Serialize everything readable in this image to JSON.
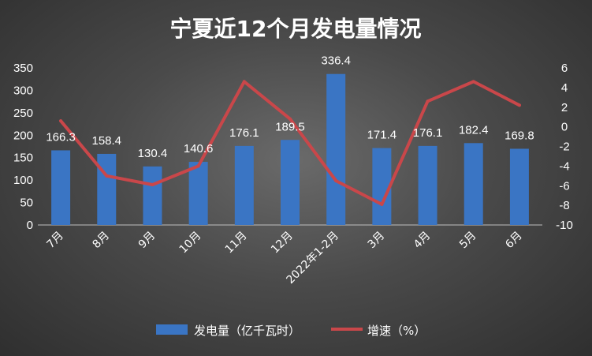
{
  "chart_data": {
    "type": "bar",
    "title": "宁夏近12个月发电量情况",
    "categories": [
      "7月",
      "8月",
      "9月",
      "10月",
      "11月",
      "12月",
      "2022年1-2月",
      "3月",
      "4月",
      "5月",
      "6月"
    ],
    "series": [
      {
        "name": "发电量（亿千瓦时）",
        "type": "bar",
        "axis": "left",
        "color": "#3a75c4",
        "values": [
          166.3,
          158.4,
          130.4,
          140.6,
          176.1,
          189.5,
          336.4,
          171.4,
          176.1,
          182.4,
          169.8
        ],
        "labels": [
          "166.3",
          "158.4",
          "130.4",
          "140.6",
          "176.1",
          "189.5",
          "336.4",
          "171.4",
          "176.1",
          "182.4",
          "169.8"
        ]
      },
      {
        "name": "增速（%）",
        "type": "line",
        "axis": "right",
        "color": "#c9474a",
        "values": [
          0.6,
          -5.0,
          -5.9,
          -4.0,
          4.6,
          0.8,
          -5.5,
          -7.9,
          2.6,
          4.6,
          2.2
        ]
      }
    ],
    "y_left": {
      "min": 0,
      "max": 350,
      "ticks": [
        "0",
        "50",
        "100",
        "150",
        "200",
        "250",
        "300",
        "350"
      ]
    },
    "y_right": {
      "min": -10,
      "max": 6,
      "ticks": [
        "-10",
        "-8",
        "-6",
        "-4",
        "-2",
        "0",
        "2",
        "4",
        "6"
      ]
    },
    "grid": false,
    "legend_position": "bottom"
  }
}
